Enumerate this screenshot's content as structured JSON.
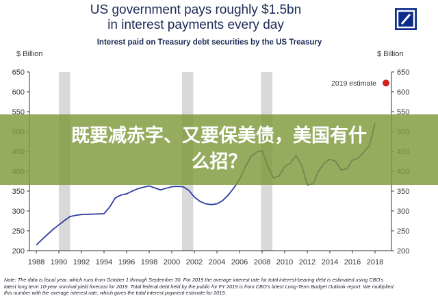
{
  "title_line1": "US government pays roughly $1.5bn",
  "title_line2": "in interest payments every day",
  "banner_line1": "既要减赤字、又要保美债，美国有什",
  "banner_line2": "么招？",
  "footnote_lines": [
    "Note: The data is fiscal year, which runs from October 1 through September 30. For 2019 the average interest rate for total interest-bearing debt is estimated using CBO's",
    "latest long term 10-year nominal yield forecast for 2019. Total federal debt held by the public for FY 2019 is from CBO's latest Long-Term Budget Outlook report. We multiplied",
    "this number with the average interest rate, which gives the total interest payment estimate for 2019."
  ],
  "colors": {
    "title": "#1a2a55",
    "line": "#2b3aa0",
    "estimate_dot": "#d42020",
    "shading": "#d9d9d9",
    "logo": "#0b2c8a",
    "banner": "#7e9a3c"
  },
  "icons": {
    "logo": "deutsche-bank-logo-icon"
  },
  "chart_data": {
    "type": "line",
    "title": "Interest paid on Treasury debt securities by the US Treasury",
    "ylabel_left": "$ Billion",
    "ylabel_right": "$ Billion",
    "xlim": [
      1988,
      2019
    ],
    "ylim": [
      200,
      650
    ],
    "yticks": [
      200,
      250,
      300,
      350,
      400,
      450,
      500,
      550,
      600,
      650
    ],
    "xticks": [
      1988,
      1990,
      1992,
      1994,
      1996,
      1998,
      2000,
      2002,
      2004,
      2006,
      2008,
      2010,
      2012,
      2014,
      2016,
      2018
    ],
    "grid": false,
    "legend": "top-right",
    "recessions": [
      [
        1990.0,
        1991.0
      ],
      [
        2000.9,
        2001.9
      ],
      [
        2007.9,
        2008.9
      ]
    ],
    "series": [
      {
        "x": [
          1988,
          1988.5,
          1989,
          1989.5,
          1990,
          1990.5,
          1991,
          1991.5,
          1992,
          1993,
          1994,
          1994.5,
          1995,
          1995.5,
          1996,
          1996.5,
          1997,
          1997.5,
          1998,
          1998.5,
          1999,
          1999.5,
          2000,
          2000.5,
          2001,
          2001.5,
          2002,
          2002.5,
          2003,
          2003.5,
          2004,
          2004.5,
          2005,
          2005.5,
          2006,
          2006.5,
          2007,
          2007.5,
          2008,
          2008.5,
          2009,
          2009.5,
          2010,
          2010.5,
          2011,
          2011.5,
          2012,
          2012.5,
          2013,
          2013.5,
          2014,
          2014.5,
          2015,
          2015.5,
          2016,
          2016.5,
          2017,
          2017.5,
          2018
        ],
        "values": [
          214,
          228,
          241,
          254,
          265,
          276,
          286,
          289,
          291,
          292,
          293,
          310,
          333,
          340,
          343,
          350,
          356,
          360,
          363,
          358,
          353,
          357,
          361,
          362,
          361,
          352,
          335,
          324,
          318,
          316,
          318,
          326,
          340,
          358,
          380,
          410,
          437,
          448,
          452,
          412,
          383,
          388,
          412,
          420,
          440,
          415,
          366,
          368,
          400,
          421,
          430,
          425,
          403,
          406,
          428,
          433,
          448,
          465,
          520
        ]
      }
    ],
    "estimate": {
      "label": "2019 estimate",
      "x": 2019,
      "value": 622
    }
  }
}
